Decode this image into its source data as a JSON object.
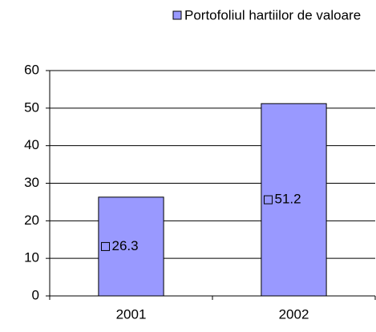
{
  "chart_data": {
    "type": "bar",
    "categories": [
      "2001",
      "2002"
    ],
    "series": [
      {
        "name": "Portofoliul hartiilor de valoare",
        "color": "#9999ff",
        "values": [
          26.3,
          51.2
        ]
      }
    ],
    "ylim": [
      0,
      60
    ],
    "yticks": [
      0,
      10,
      20,
      30,
      40,
      50,
      60
    ],
    "grid": true,
    "legend": "top"
  }
}
